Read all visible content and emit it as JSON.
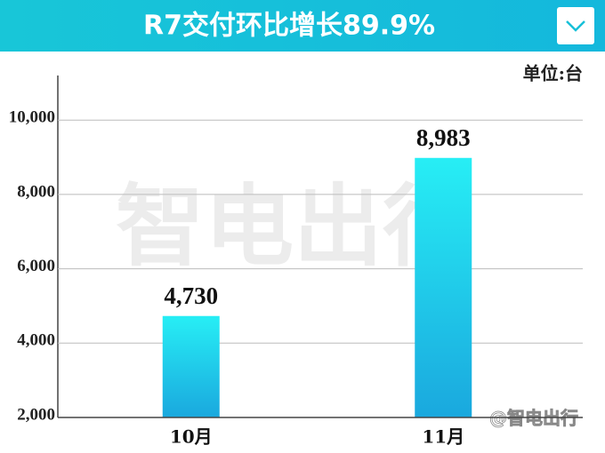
{
  "chart_data": {
    "type": "bar",
    "title": "R7交付环比增长89.9%",
    "unit_label": "单位:台",
    "watermark": "智电出行",
    "source": "@智电出行",
    "categories": [
      "10月",
      "11月"
    ],
    "values": [
      4730,
      8983
    ],
    "value_labels": [
      "4,730",
      "8,983"
    ],
    "gradient": [
      "#27eef5",
      "#1aa8de"
    ],
    "ylim": [
      2000,
      11200
    ],
    "yticks": [
      {
        "value": 2000,
        "label": "2,000"
      },
      {
        "value": 4000,
        "label": "4,000"
      },
      {
        "value": 6000,
        "label": "6,000"
      },
      {
        "value": 8000,
        "label": "8,000"
      },
      {
        "value": 10000,
        "label": "10,000"
      }
    ],
    "grid": true
  }
}
